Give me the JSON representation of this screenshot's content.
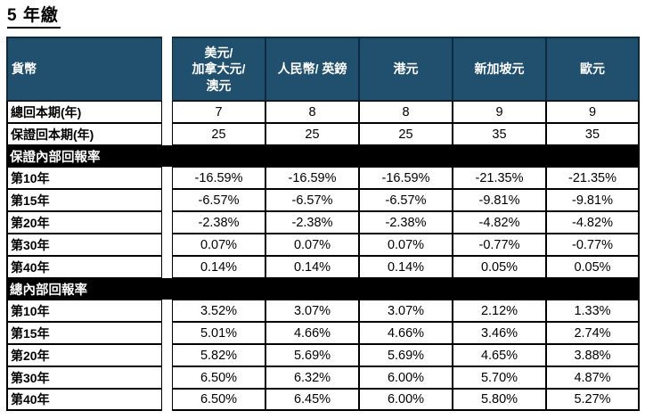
{
  "title": "5 年繳",
  "colors": {
    "header_bg": "#21506F",
    "section_bg": "#000000",
    "header_text": "#ffffff",
    "body_text": "#000000"
  },
  "table": {
    "header": {
      "label": "貨幣",
      "columns": [
        "美元/\n加拿大元/\n澳元",
        "人民幣/ 英鎊",
        "港元",
        "新加坡元",
        "歐元"
      ]
    },
    "rows": [
      {
        "type": "data",
        "label": "總回本期(年)",
        "values": [
          "7",
          "8",
          "8",
          "9",
          "9"
        ]
      },
      {
        "type": "data",
        "label": "保證回本期(年)",
        "values": [
          "25",
          "25",
          "25",
          "35",
          "35"
        ]
      },
      {
        "type": "section",
        "label": "保證內部回報率"
      },
      {
        "type": "data",
        "label": "第10年",
        "values": [
          "-16.59%",
          "-16.59%",
          "-16.59%",
          "-21.35%",
          "-21.35%"
        ]
      },
      {
        "type": "data",
        "label": "第15年",
        "values": [
          "-6.57%",
          "-6.57%",
          "-6.57%",
          "-9.81%",
          "-9.81%"
        ]
      },
      {
        "type": "data",
        "label": "第20年",
        "values": [
          "-2.38%",
          "-2.38%",
          "-2.38%",
          "-4.82%",
          "-4.82%"
        ]
      },
      {
        "type": "data",
        "label": "第30年",
        "values": [
          "0.07%",
          "0.07%",
          "0.07%",
          "-0.77%",
          "-0.77%"
        ]
      },
      {
        "type": "data",
        "label": "第40年",
        "values": [
          "0.14%",
          "0.14%",
          "0.14%",
          "0.05%",
          "0.05%"
        ]
      },
      {
        "type": "section",
        "label": "總內部回報率"
      },
      {
        "type": "data",
        "label": "第10年",
        "values": [
          "3.52%",
          "3.07%",
          "3.07%",
          "2.12%",
          "1.33%"
        ]
      },
      {
        "type": "data",
        "label": "第15年",
        "values": [
          "5.01%",
          "4.66%",
          "4.66%",
          "3.46%",
          "2.74%"
        ]
      },
      {
        "type": "data",
        "label": "第20年",
        "values": [
          "5.82%",
          "5.69%",
          "5.69%",
          "4.65%",
          "3.88%"
        ]
      },
      {
        "type": "data",
        "label": "第30年",
        "values": [
          "6.50%",
          "6.32%",
          "6.00%",
          "5.70%",
          "4.87%"
        ]
      },
      {
        "type": "data",
        "label": "第40年",
        "values": [
          "6.50%",
          "6.45%",
          "6.00%",
          "5.80%",
          "5.27%"
        ]
      }
    ]
  }
}
